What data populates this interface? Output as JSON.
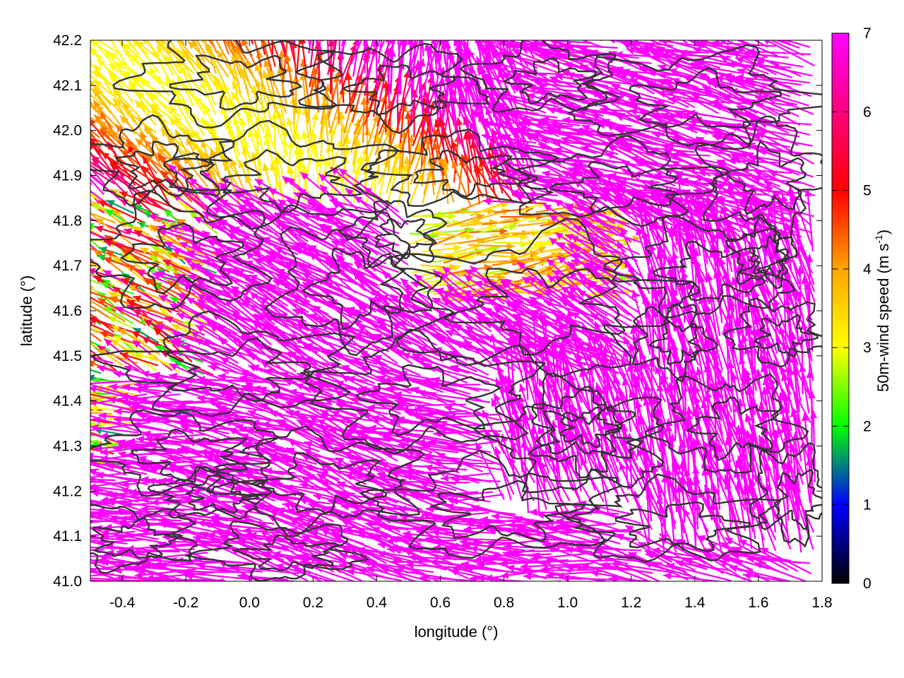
{
  "chart_data": {
    "type": "vector-field",
    "xlabel": "longitude (°)",
    "ylabel": "latitude (°)",
    "colorbar_label_main": "50m-wind speed (m s",
    "colorbar_label_sup": "-1",
    "colorbar_label_end": ")",
    "xlim": [
      -0.5,
      1.8
    ],
    "ylim": [
      41.0,
      42.2
    ],
    "x_ticks": [
      -0.4,
      -0.2,
      0.0,
      0.2,
      0.4,
      0.6,
      0.8,
      1.0,
      1.2,
      1.4,
      1.6,
      1.8
    ],
    "x_tick_labels": [
      "-0.4",
      "-0.2",
      "0.0",
      "0.2",
      "0.4",
      "0.6",
      "0.8",
      "1.0",
      "1.2",
      "1.4",
      "1.6",
      "1.8"
    ],
    "y_ticks": [
      41.0,
      41.1,
      41.2,
      41.3,
      41.4,
      41.5,
      41.6,
      41.7,
      41.8,
      41.9,
      42.0,
      42.1,
      42.2
    ],
    "y_tick_labels": [
      "41.0",
      "41.1",
      "41.2",
      "41.3",
      "41.4",
      "41.5",
      "41.6",
      "41.7",
      "41.8",
      "41.9",
      "42.0",
      "42.1",
      "42.2"
    ],
    "colorbar_range": [
      0,
      7
    ],
    "colorbar_ticks": [
      0,
      1,
      2,
      3,
      4,
      5,
      6,
      7
    ],
    "colorbar_tick_labels": [
      "0",
      "1",
      "2",
      "3",
      "4",
      "5",
      "6",
      "7"
    ],
    "colormap": [
      "#000000",
      "#0000ff",
      "#00ff00",
      "#ffff00",
      "#ffa500",
      "#ff0000",
      "#ff00ff"
    ],
    "grid": "dotted",
    "contour_color": "#333333"
  }
}
